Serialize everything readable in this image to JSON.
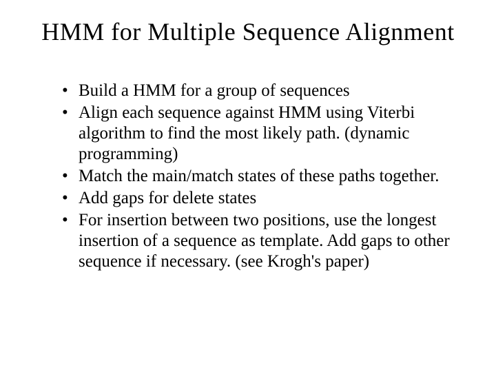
{
  "slide": {
    "title": "HMM for Multiple Sequence Alignment",
    "bullets": [
      "Build a HMM for a group of sequences",
      "Align each sequence against HMM using Viterbi algorithm to find the most likely path. (dynamic programming)",
      "Match the main/match states of these paths together.",
      "Add gaps for delete states",
      "For insertion between two positions, use the longest insertion of a sequence as template. Add gaps to other sequence if necessary. (see Krogh's paper)"
    ],
    "styling": {
      "background_color": "#ffffff",
      "text_color": "#000000",
      "title_fontsize": 36,
      "body_fontsize": 25,
      "font_family": "Georgia, Times New Roman, serif"
    }
  }
}
